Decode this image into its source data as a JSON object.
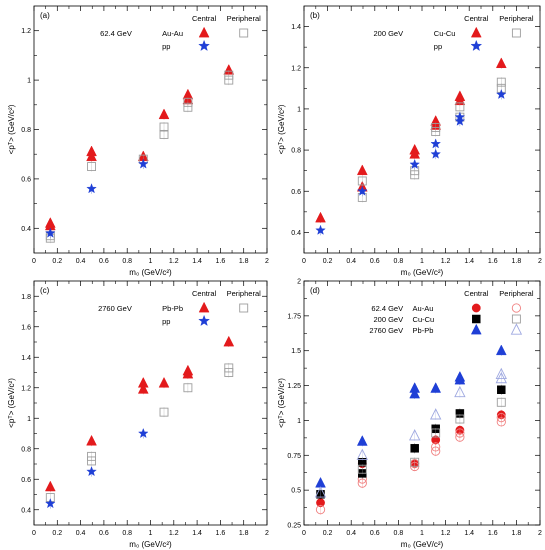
{
  "chart_data": [
    {
      "type": "scatter",
      "panel_label": "(a)",
      "energy_label": "62.4 GeV",
      "system_label": "Au-Au",
      "col_headers": [
        "Central",
        "Peripheral"
      ],
      "ref_label": "pp",
      "xlabel": "m₀ (GeV/c²)",
      "ylabel": "<pᵀ> (GeV/c²)",
      "xlim": [
        0,
        2
      ],
      "ylim": [
        0.3,
        1.3
      ],
      "xticks": [
        0,
        0.2,
        0.4,
        0.6,
        0.8,
        1,
        1.2,
        1.4,
        1.6,
        1.8,
        2
      ],
      "xtick_labels": [
        "0",
        "0.2",
        "0.4",
        "0.6",
        "0.8",
        "1",
        "1.2",
        "1.4",
        "1.6",
        "1.8",
        "2"
      ],
      "yticks": [
        0.4,
        0.6,
        0.8,
        1.0,
        1.2
      ],
      "ytick_labels": [
        "0.4",
        "0.6",
        "0.8",
        "1",
        "1.2"
      ],
      "series": [
        {
          "marker": "triangle-filled",
          "color": "#e31a1c",
          "x": [
            0.14,
            0.14,
            0.494,
            0.494,
            0.938,
            1.116,
            1.321,
            1.321,
            1.672
          ],
          "y": [
            0.42,
            0.41,
            0.71,
            0.69,
            0.69,
            0.86,
            0.94,
            0.92,
            1.04
          ]
        },
        {
          "marker": "square-open",
          "color": "#9e9e9e",
          "x": [
            0.14,
            0.14,
            0.494,
            0.938,
            1.116,
            1.116,
            1.321,
            1.321,
            1.672,
            1.672
          ],
          "y": [
            0.37,
            0.36,
            0.65,
            0.68,
            0.81,
            0.78,
            0.91,
            0.89,
            1.02,
            1.0
          ]
        },
        {
          "marker": "star",
          "color": "#1f3fd6",
          "x": [
            0.14,
            0.494,
            0.938
          ],
          "y": [
            0.38,
            0.56,
            0.66
          ]
        }
      ]
    },
    {
      "type": "scatter",
      "panel_label": "(b)",
      "energy_label": "200 GeV",
      "system_label": "Cu-Cu",
      "col_headers": [
        "Central",
        "Peripheral"
      ],
      "ref_label": "pp",
      "xlabel": "m₀ (GeV/c²)",
      "ylabel": "<pᵀ> (GeV/c²)",
      "xlim": [
        0,
        2
      ],
      "ylim": [
        0.3,
        1.5
      ],
      "xticks": [
        0,
        0.2,
        0.4,
        0.6,
        0.8,
        1,
        1.2,
        1.4,
        1.6,
        1.8,
        2
      ],
      "xtick_labels": [
        "0",
        "0.2",
        "0.4",
        "0.6",
        "0.8",
        "1",
        "1.2",
        "1.4",
        "1.6",
        "1.8",
        "2"
      ],
      "yticks": [
        0.4,
        0.6,
        0.8,
        1.0,
        1.2,
        1.4
      ],
      "ytick_labels": [
        "0.4",
        "0.6",
        "0.8",
        "1",
        "1.2",
        "1.4"
      ],
      "series": [
        {
          "marker": "triangle-filled",
          "color": "#e31a1c",
          "x": [
            0.14,
            0.494,
            0.494,
            0.938,
            0.938,
            1.116,
            1.116,
            1.321,
            1.321,
            1.672
          ],
          "y": [
            0.47,
            0.7,
            0.62,
            0.8,
            0.78,
            0.94,
            0.92,
            1.06,
            1.04,
            1.22
          ]
        },
        {
          "marker": "square-open",
          "color": "#9e9e9e",
          "x": [
            0.494,
            0.494,
            0.938,
            0.938,
            1.116,
            1.116,
            1.321,
            1.321,
            1.672,
            1.672
          ],
          "y": [
            0.65,
            0.57,
            0.7,
            0.68,
            0.91,
            0.89,
            1.01,
            0.96,
            1.13,
            1.1
          ]
        },
        {
          "marker": "star",
          "color": "#1f3fd6",
          "x": [
            0.14,
            0.494,
            0.938,
            1.116,
            1.116,
            1.321,
            1.321,
            1.672
          ],
          "y": [
            0.41,
            0.6,
            0.73,
            0.83,
            0.78,
            0.96,
            0.94,
            1.07
          ]
        }
      ]
    },
    {
      "type": "scatter",
      "panel_label": "(c)",
      "energy_label": "2760 GeV",
      "system_label": "Pb-Pb",
      "col_headers": [
        "Central",
        "Peripheral"
      ],
      "ref_label": "pp",
      "xlabel": "m₀ (GeV/c²)",
      "ylabel": "<pᵀ> (GeV/c²)",
      "xlim": [
        0,
        2
      ],
      "ylim": [
        0.3,
        1.9
      ],
      "xticks": [
        0,
        0.2,
        0.4,
        0.6,
        0.8,
        1,
        1.2,
        1.4,
        1.6,
        1.8,
        2
      ],
      "xtick_labels": [
        "0",
        "0.2",
        "0.4",
        "0.6",
        "0.8",
        "1",
        "1.2",
        "1.4",
        "1.6",
        "1.8",
        "2"
      ],
      "yticks": [
        0.4,
        0.6,
        0.8,
        1.0,
        1.2,
        1.4,
        1.6,
        1.8
      ],
      "ytick_labels": [
        "0.4",
        "0.6",
        "0.8",
        "1",
        "1.2",
        "1.4",
        "1.6",
        "1.8"
      ],
      "series": [
        {
          "marker": "triangle-filled",
          "color": "#e31a1c",
          "x": [
            0.14,
            0.494,
            0.938,
            0.938,
            1.116,
            1.321,
            1.321,
            1.672
          ],
          "y": [
            0.55,
            0.85,
            1.23,
            1.19,
            1.23,
            1.31,
            1.29,
            1.5
          ]
        },
        {
          "marker": "square-open",
          "color": "#9e9e9e",
          "x": [
            0.14,
            0.494,
            0.494,
            1.116,
            1.321,
            1.672,
            1.672
          ],
          "y": [
            0.48,
            0.75,
            0.72,
            1.04,
            1.2,
            1.33,
            1.3
          ]
        },
        {
          "marker": "star",
          "color": "#1f3fd6",
          "x": [
            0.14,
            0.494,
            0.938
          ],
          "y": [
            0.44,
            0.65,
            0.9
          ]
        }
      ]
    },
    {
      "type": "scatter",
      "panel_label": "(d)",
      "col_headers": [
        "Central",
        "Peripheral"
      ],
      "legend_rows": [
        {
          "energy": "62.4 GeV",
          "system": "Au-Au",
          "marker": "circle",
          "color": "#e31a1c"
        },
        {
          "energy": "200 GeV",
          "system": "Cu-Cu",
          "marker": "square",
          "color": "#000000"
        },
        {
          "energy": "2760 GeV",
          "system": "Pb-Pb",
          "marker": "triangle",
          "color": "#1f3fd6"
        }
      ],
      "xlabel": "m₀ (GeV/c²)",
      "ylabel": "<pᵀ> (GeV/c²)",
      "xlim": [
        0,
        2
      ],
      "ylim": [
        0.25,
        2.0
      ],
      "xticks": [
        0,
        0.2,
        0.4,
        0.6,
        0.8,
        1,
        1.2,
        1.4,
        1.6,
        1.8,
        2
      ],
      "xtick_labels": [
        "0",
        "0.2",
        "0.4",
        "0.6",
        "0.8",
        "1",
        "1.2",
        "1.4",
        "1.6",
        "1.8",
        "2"
      ],
      "yticks": [
        0.25,
        0.5,
        0.75,
        1.0,
        1.25,
        1.5,
        1.75,
        2.0
      ],
      "ytick_labels": [
        "0.25",
        "0.5",
        "0.75",
        "1",
        "1.25",
        "1.5",
        "1.75",
        "2"
      ],
      "series": [
        {
          "marker": "circle-filled",
          "color": "#e31a1c",
          "x": [
            0.14,
            0.494,
            0.938,
            1.116,
            1.321,
            1.672
          ],
          "y": [
            0.41,
            0.69,
            0.69,
            0.86,
            0.93,
            1.04
          ]
        },
        {
          "marker": "circle-open",
          "color": "#f08080",
          "x": [
            0.14,
            0.494,
            0.494,
            0.938,
            0.938,
            1.116,
            1.116,
            1.321,
            1.321,
            1.672,
            1.672
          ],
          "y": [
            0.36,
            0.58,
            0.55,
            0.69,
            0.67,
            0.81,
            0.78,
            0.91,
            0.88,
            1.02,
            0.99
          ]
        },
        {
          "marker": "square-filled",
          "color": "#000000",
          "x": [
            0.14,
            0.494,
            0.494,
            0.938,
            1.116,
            1.321,
            1.672
          ],
          "y": [
            0.47,
            0.7,
            0.62,
            0.8,
            0.94,
            1.05,
            1.22
          ]
        },
        {
          "marker": "square-open",
          "color": "#9e9e9e",
          "x": [
            0.494,
            0.938,
            1.116,
            1.321,
            1.672
          ],
          "y": [
            0.65,
            0.7,
            0.91,
            1.01,
            1.13
          ]
        },
        {
          "marker": "triangle-filled",
          "color": "#1f3fd6",
          "x": [
            0.14,
            0.494,
            0.938,
            0.938,
            1.116,
            1.321,
            1.321,
            1.672
          ],
          "y": [
            0.55,
            0.85,
            1.23,
            1.19,
            1.23,
            1.31,
            1.29,
            1.5
          ]
        },
        {
          "marker": "triangle-open",
          "color": "#9ea8e0",
          "x": [
            0.14,
            0.494,
            0.938,
            1.116,
            1.321,
            1.672,
            1.672
          ],
          "y": [
            0.48,
            0.75,
            0.89,
            1.04,
            1.2,
            1.33,
            1.3
          ]
        }
      ]
    }
  ]
}
